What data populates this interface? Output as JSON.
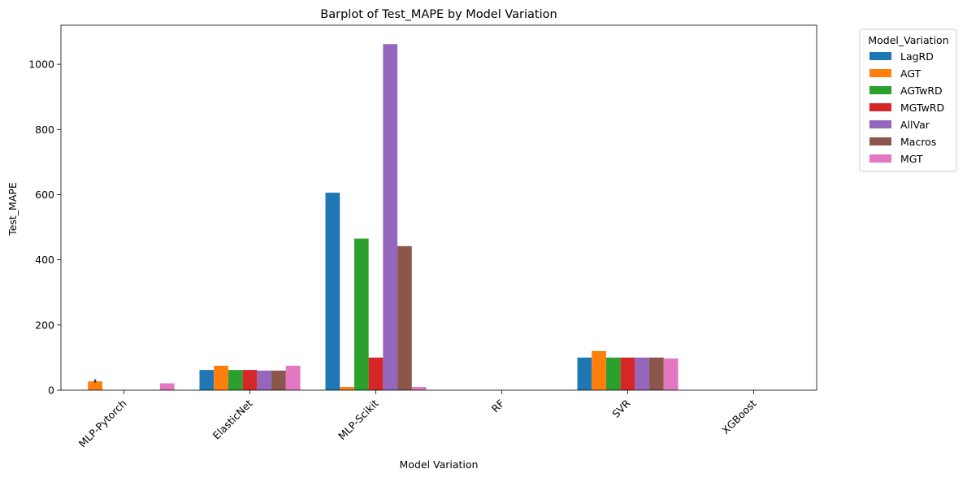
{
  "chart_data": {
    "type": "bar",
    "title": "Barplot of Test_MAPE by Model Variation",
    "xlabel": "Model Variation",
    "ylabel": "Test_MAPE",
    "categories": [
      "MLP-Pytorch",
      "ElasticNet",
      "MLP-Scikit",
      "RF",
      "SVR",
      "XGBoost"
    ],
    "ylim": [
      0,
      1120
    ],
    "yticks": [
      0,
      200,
      400,
      600,
      800,
      1000
    ],
    "grid": false,
    "legend": {
      "title": "Model_Variation",
      "placement": "outside top-right"
    },
    "series": [
      {
        "name": "LagRD",
        "color": "#1f77b4",
        "values": [
          null,
          62,
          606,
          null,
          100,
          null
        ]
      },
      {
        "name": "AGT",
        "color": "#ff7f0e",
        "values": [
          27,
          75,
          10,
          null,
          120,
          null
        ]
      },
      {
        "name": "AGTwRD",
        "color": "#2ca02c",
        "values": [
          null,
          62,
          465,
          null,
          100,
          null
        ]
      },
      {
        "name": "MGTwRD",
        "color": "#d62728",
        "values": [
          null,
          62,
          100,
          null,
          100,
          null
        ]
      },
      {
        "name": "AllVar",
        "color": "#9467bd",
        "values": [
          null,
          60,
          1062,
          null,
          100,
          null
        ]
      },
      {
        "name": "Macros",
        "color": "#8c564b",
        "values": [
          null,
          60,
          442,
          null,
          100,
          null
        ]
      },
      {
        "name": "MGT",
        "color": "#e377c2",
        "values": [
          21,
          75,
          10,
          null,
          97,
          null
        ]
      }
    ],
    "error_bars": [
      {
        "series": "AGT",
        "category": "MLP-Pytorch",
        "low": 23,
        "high": 33
      }
    ]
  }
}
